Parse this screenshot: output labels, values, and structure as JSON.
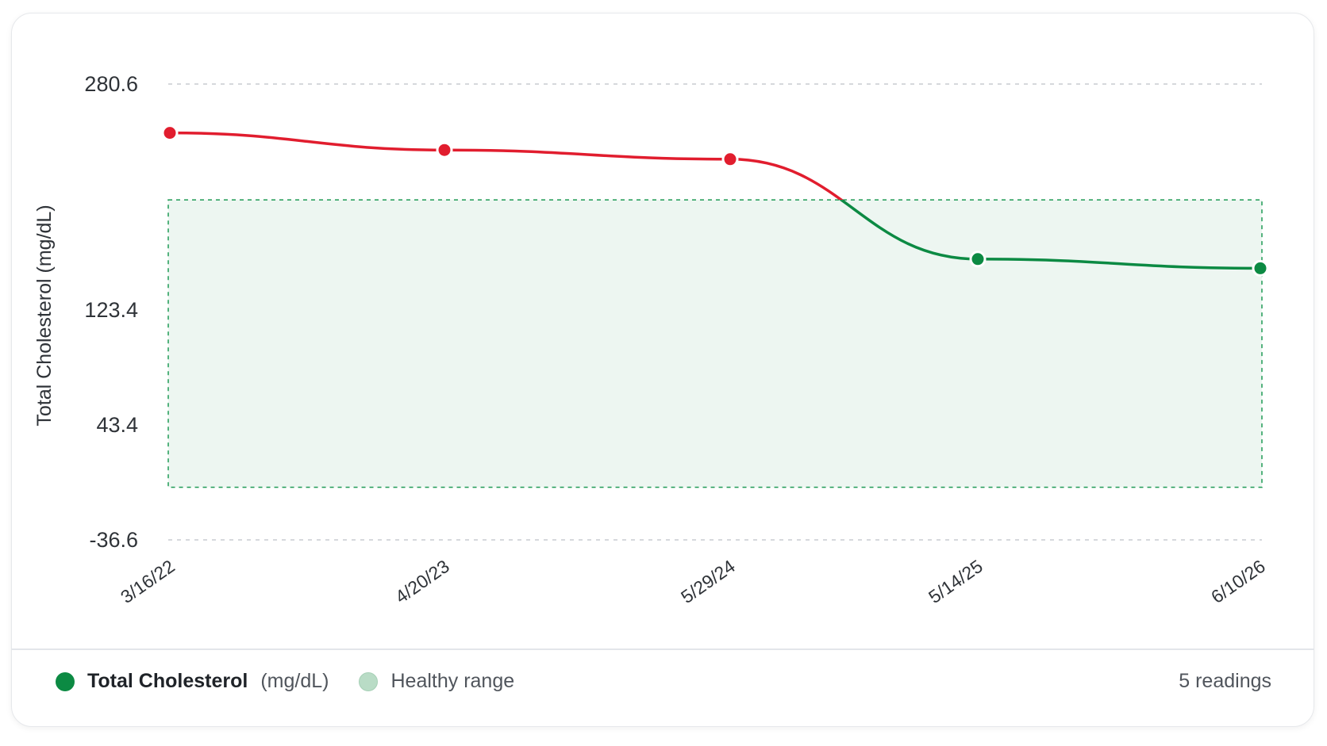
{
  "colors": {
    "above_range": "#e11d2e",
    "in_range": "#0c8a43",
    "range_fill": "#edf6f1",
    "range_border": "#1f9a55",
    "grid": "#c9ccd1"
  },
  "legend": {
    "series_name": "Total Cholesterol",
    "unit": "(mg/dL)",
    "range_label": "Healthy range",
    "count_label": "5 readings"
  },
  "chart_data": {
    "type": "line",
    "ylabel": "Total Cholesterol (mg/dL)",
    "ylim": [
      -36.6,
      280.6
    ],
    "yticks": [
      {
        "value": 280.6,
        "label": "280.6"
      },
      {
        "value": 123.4,
        "label": "123.4"
      },
      {
        "value": 43.4,
        "label": "43.4"
      },
      {
        "value": -36.6,
        "label": "-36.6"
      }
    ],
    "x": [
      "3/16/22",
      "4/20/23",
      "5/29/24",
      "5/14/25",
      "6/10/26"
    ],
    "values": [
      246.6,
      234.7,
      228.3,
      158.8,
      152.4
    ],
    "healthy_range": [
      0,
      200
    ],
    "grid": true
  }
}
